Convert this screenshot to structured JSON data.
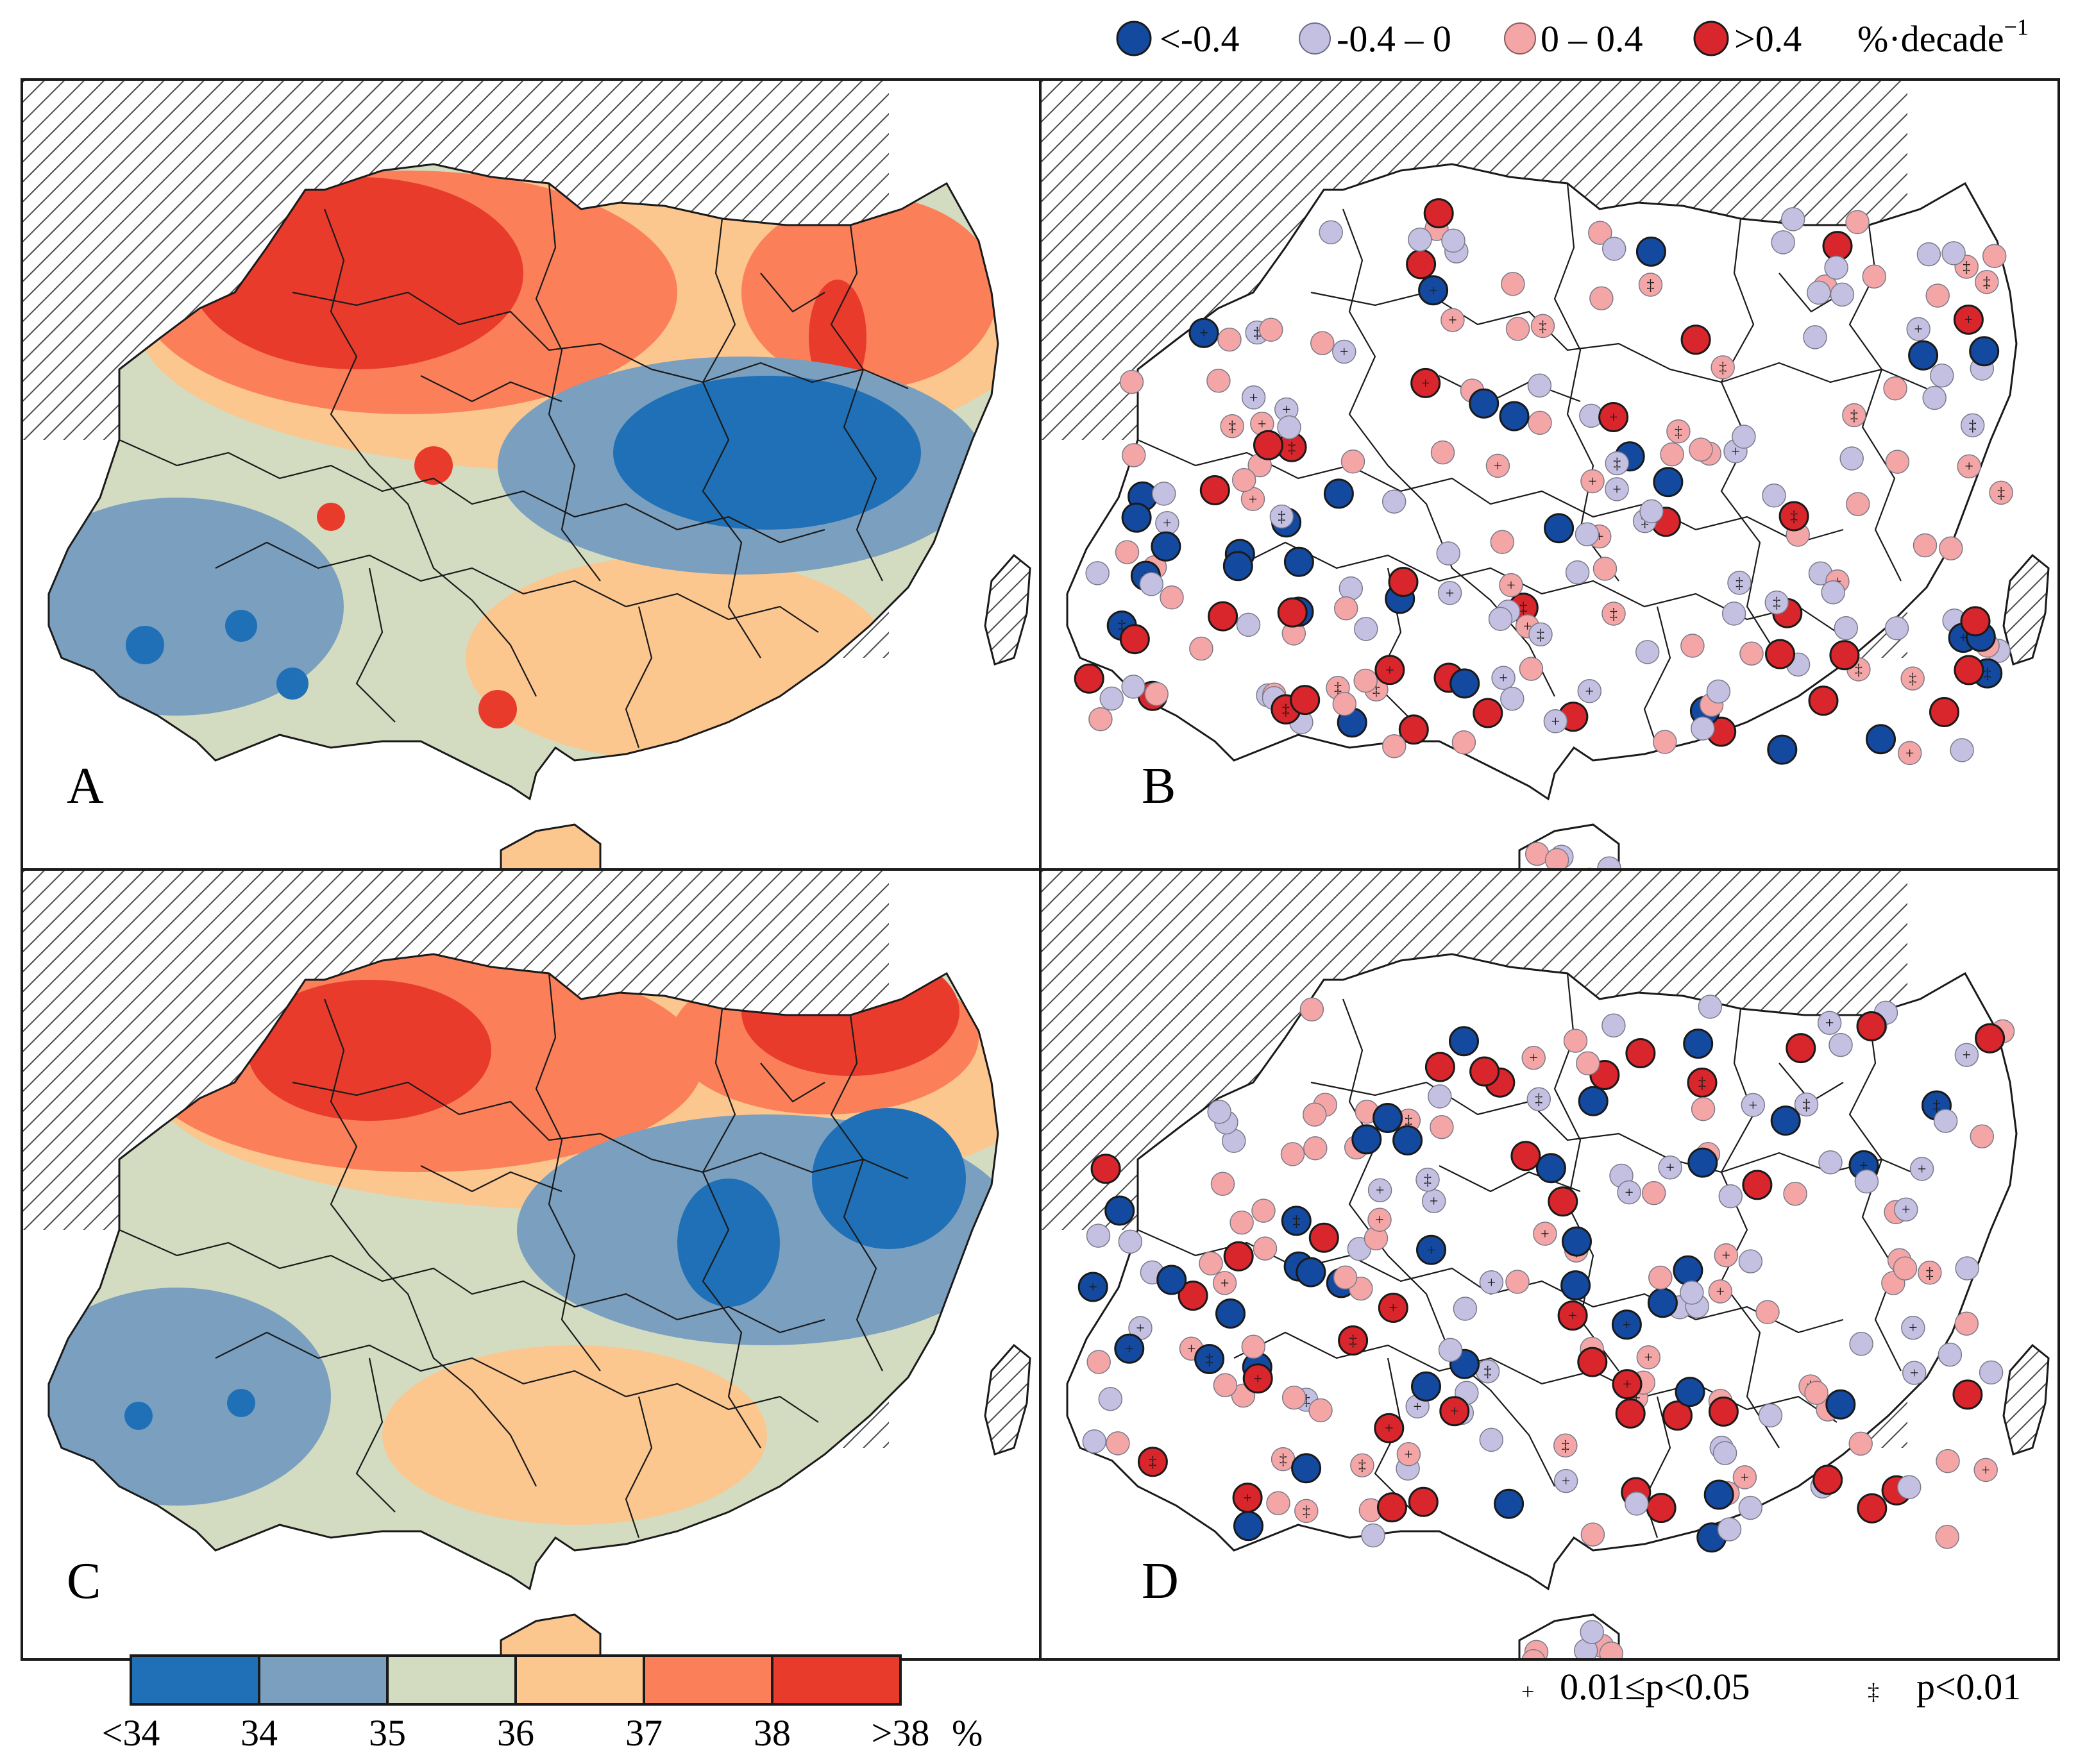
{
  "panels": [
    {
      "id": "A",
      "label": "A",
      "kind": "mean-field"
    },
    {
      "id": "B",
      "label": "B",
      "kind": "trend-stations"
    },
    {
      "id": "C",
      "label": "C",
      "kind": "mean-field"
    },
    {
      "id": "D",
      "label": "D",
      "kind": "trend-stations"
    }
  ],
  "trend_legend": {
    "items": [
      {
        "label": "<-0.4",
        "color": "#1449a0"
      },
      {
        "label": "-0.4 – 0",
        "color": "#c3c0e2"
      },
      {
        "label": "0 – 0.4",
        "color": "#f4a6a6"
      },
      {
        "label": ">0.4",
        "color": "#d8262c"
      }
    ],
    "unit": "%·decade",
    "unit_exp": "−1"
  },
  "colorbar": {
    "colors": [
      "#1f70b7",
      "#7a9fbf",
      "#d3dcc1",
      "#fcc68f",
      "#fb8059",
      "#e83b2c"
    ],
    "tick_labels": [
      "<34",
      "34",
      "35",
      "36",
      "37",
      "38",
      ">38"
    ],
    "unit": "%"
  },
  "significance_legend": [
    {
      "symbol": "+",
      "label": "0.01≤p<0.05"
    },
    {
      "symbol": "‡",
      "label": "p<0.01"
    }
  ],
  "colors": {
    "neg_strong": "#1449a0",
    "neg_weak": "#c3c0e2",
    "pos_weak": "#f4a6a6",
    "pos_strong": "#d8262c",
    "outside": "#ffffff"
  }
}
